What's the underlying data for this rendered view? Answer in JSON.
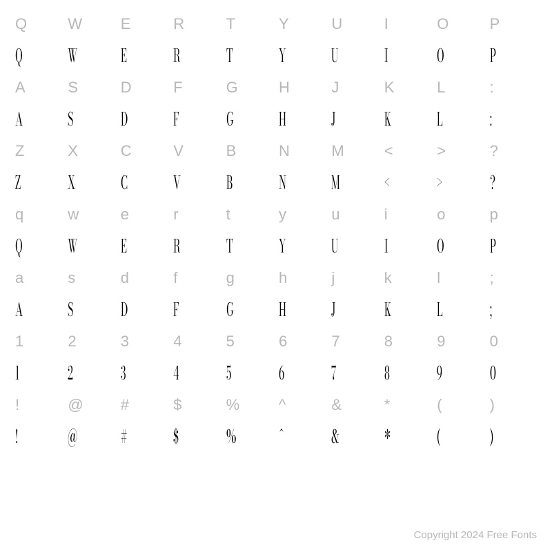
{
  "grid": {
    "columns": 10,
    "label_color": "#b7b7b7",
    "glyph_color": "#000000",
    "label_fontsize": 22,
    "glyph_fontsize": 26,
    "background_color": "#ffffff",
    "rows": [
      {
        "type": "label",
        "cells": [
          "Q",
          "W",
          "E",
          "R",
          "T",
          "Y",
          "U",
          "I",
          "O",
          "P"
        ]
      },
      {
        "type": "glyph",
        "cells": [
          "Q",
          "W",
          "E",
          "R",
          "T",
          "Y",
          "U",
          "I",
          "O",
          "P"
        ]
      },
      {
        "type": "label",
        "cells": [
          "A",
          "S",
          "D",
          "F",
          "G",
          "H",
          "J",
          "K",
          "L",
          ":"
        ]
      },
      {
        "type": "glyph",
        "cells": [
          "A",
          "S",
          "D",
          "F",
          "G",
          "H",
          "J",
          "K",
          "L",
          ":"
        ]
      },
      {
        "type": "label",
        "cells": [
          "Z",
          "X",
          "C",
          "V",
          "B",
          "N",
          "M",
          "<",
          ">",
          "?"
        ]
      },
      {
        "type": "glyph",
        "cells": [
          "Z",
          "X",
          "C",
          "V",
          "B",
          "N",
          "M",
          "<",
          ">",
          "?"
        ]
      },
      {
        "type": "label",
        "cells": [
          "q",
          "w",
          "e",
          "r",
          "t",
          "y",
          "u",
          "i",
          "o",
          "p"
        ]
      },
      {
        "type": "glyph",
        "cells": [
          "Q",
          "W",
          "E",
          "R",
          "T",
          "Y",
          "U",
          "I",
          "O",
          "P"
        ]
      },
      {
        "type": "label",
        "cells": [
          "a",
          "s",
          "d",
          "f",
          "g",
          "h",
          "j",
          "k",
          "l",
          ";"
        ]
      },
      {
        "type": "glyph",
        "cells": [
          "A",
          "S",
          "D",
          "F",
          "G",
          "H",
          "J",
          "K",
          "L",
          ";"
        ]
      },
      {
        "type": "label",
        "cells": [
          "1",
          "2",
          "3",
          "4",
          "5",
          "6",
          "7",
          "8",
          "9",
          "0"
        ]
      },
      {
        "type": "glyph",
        "cells": [
          "1",
          "2",
          "3",
          "4",
          "5",
          "6",
          "7",
          "8",
          "9",
          "0"
        ]
      },
      {
        "type": "label",
        "cells": [
          "!",
          "@",
          "#",
          "$",
          "%",
          "^",
          "&",
          "*",
          "(",
          ")"
        ]
      },
      {
        "type": "glyph",
        "cells": [
          "!",
          "@",
          "#",
          "$",
          "%",
          "^",
          "&",
          "*",
          "(",
          ")"
        ]
      }
    ]
  },
  "footer": {
    "copyright": "Copyright 2024 Free Fonts"
  }
}
